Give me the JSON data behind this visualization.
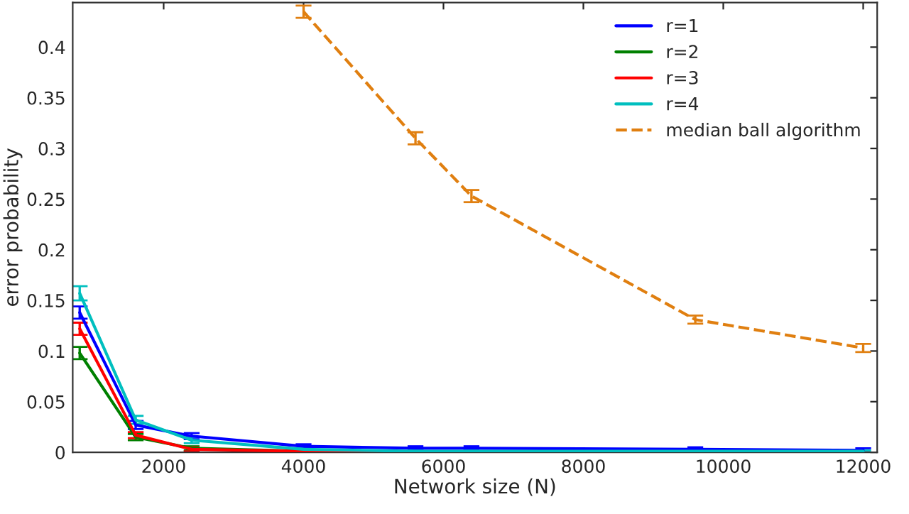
{
  "chart_data": {
    "type": "line",
    "xlabel": "Network size (N)",
    "ylabel": "error probability",
    "xlim": [
      700,
      12200
    ],
    "ylim": [
      0,
      0.444
    ],
    "xticks": [
      2000,
      4000,
      6000,
      8000,
      10000,
      12000
    ],
    "yticks": [
      0,
      0.05,
      0.1,
      0.15,
      0.2,
      0.25,
      0.3,
      0.35,
      0.4
    ],
    "grid": false,
    "legend": "top right",
    "marker": "none",
    "series": [
      {
        "name": "r=1",
        "color": "#0000ff",
        "x": [
          800,
          1600,
          2400,
          4000,
          5600,
          6400,
          9600,
          12000
        ],
        "values": [
          0.138,
          0.027,
          0.016,
          0.006,
          0.004,
          0.004,
          0.003,
          0.002
        ],
        "errors": [
          0.006,
          0.004,
          0.003,
          0.002,
          0.002,
          0.002,
          0.002,
          0.002
        ]
      },
      {
        "name": "r=2",
        "color": "#008000",
        "x": [
          800,
          1600,
          2400,
          4000,
          5600
        ],
        "values": [
          0.098,
          0.015,
          0.004,
          0.001,
          0
        ],
        "errors": [
          0.006,
          0.003,
          0.002,
          0.001,
          null
        ]
      },
      {
        "name": "r=3",
        "color": "#ff0000",
        "x": [
          800,
          1600,
          2400,
          4000,
          5600
        ],
        "values": [
          0.122,
          0.017,
          0.003,
          0.001,
          0
        ],
        "errors": [
          0.006,
          0.003,
          0.002,
          0.001,
          null
        ]
      },
      {
        "name": "r=4",
        "color": "#00bfbf",
        "x": [
          800,
          1600,
          2400,
          4000,
          5600,
          6400,
          9600,
          12000
        ],
        "values": [
          0.157,
          0.032,
          0.012,
          0.003,
          0.001,
          0.001,
          0.001,
          0.001
        ],
        "errors": [
          0.007,
          0.004,
          0.003,
          0.001,
          0.001,
          0.001,
          0.001,
          0.001
        ]
      },
      {
        "name": "median ball algorithm",
        "color": "#e07f10",
        "line_style": "dashed",
        "x": [
          4000,
          5600,
          6400,
          9600,
          12000
        ],
        "values": [
          0.435,
          0.31,
          0.253,
          0.131,
          0.103
        ],
        "errors": [
          0.006,
          0.006,
          0.006,
          0.004,
          0.004
        ]
      }
    ]
  }
}
